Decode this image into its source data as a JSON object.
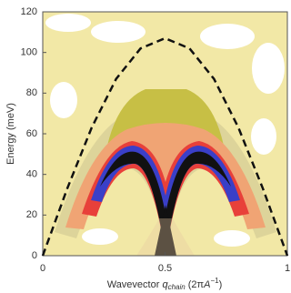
{
  "chart_data": {
    "type": "line",
    "xlabel_parts": [
      "Wavevector ",
      "q",
      "chain",
      " (2π",
      "A",
      "−1",
      ")"
    ],
    "ylabel": "Energy (meV)",
    "xlim": [
      0,
      1
    ],
    "ylim": [
      0,
      120
    ],
    "xticks": [
      0,
      0.5,
      1
    ],
    "yticks": [
      0,
      20,
      40,
      60,
      80,
      100,
      120
    ],
    "x": [
      0,
      0.1,
      0.2,
      0.3,
      0.4,
      0.5,
      0.6,
      0.7,
      0.8,
      0.9,
      1
    ],
    "series": [
      {
        "color": "#111111",
        "values": [
          0,
          33,
          63,
          87,
          102,
          107,
          102,
          87,
          63,
          33,
          0
        ]
      }
    ]
  }
}
